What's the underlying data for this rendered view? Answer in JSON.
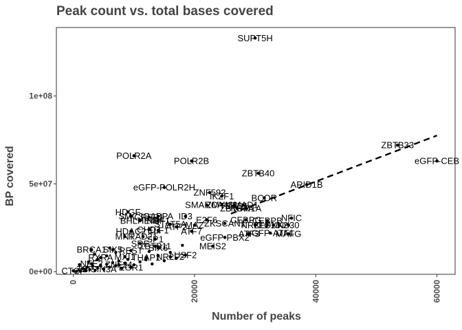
{
  "chart_data": {
    "type": "scatter",
    "title": "Peak count vs. total bases covered",
    "xlabel": "Number of peaks",
    "ylabel": "BP covered",
    "x_ticks": [
      {
        "value": 0,
        "label": "0"
      },
      {
        "value": 20000,
        "label": "20000"
      },
      {
        "value": 40000,
        "label": "40000"
      },
      {
        "value": 60000,
        "label": "60000"
      }
    ],
    "y_ticks": [
      {
        "value": 0,
        "label": "0e+00"
      },
      {
        "value": 50000000,
        "label": "5e+07"
      },
      {
        "value": 100000000,
        "label": "1e+08"
      }
    ],
    "xlim": [
      -2800,
      63000
    ],
    "ylim": [
      -1500000,
      139000000
    ],
    "grid": false,
    "legend": "none",
    "trend_line": {
      "style": "dashed",
      "from": [
        26000,
        33000000
      ],
      "to": [
        60000,
        77500000
      ]
    },
    "point_color": "#000000",
    "labeled_points": [
      {
        "label": "SUPT5H",
        "x": 30000,
        "y": 133000000
      },
      {
        "label": "ZBTB33",
        "x": 53500,
        "y": 72000000
      },
      {
        "label": "eGFP-CEB",
        "x": 60000,
        "y": 63000000
      },
      {
        "label": "POLR2A",
        "x": 10000,
        "y": 66000000
      },
      {
        "label": "POLR2B",
        "x": 19500,
        "y": 63000000
      },
      {
        "label": "ZBTB40",
        "x": 30500,
        "y": 56000000
      },
      {
        "label": "eGFP-POLR2H",
        "x": 15000,
        "y": 48000000
      },
      {
        "label": "ARID1B",
        "x": 38500,
        "y": 49500000
      },
      {
        "label": "ZNF592",
        "x": 22500,
        "y": 45000000
      },
      {
        "label": "IKZF1",
        "x": 24500,
        "y": 43000000
      },
      {
        "label": "BCOR",
        "x": 31500,
        "y": 42000000
      },
      {
        "label": "SMARCA4",
        "x": 22000,
        "y": 38000000
      },
      {
        "label": "ZMYM3",
        "x": 24500,
        "y": 38000000
      },
      {
        "label": "TEAD1",
        "x": 26500,
        "y": 37500000
      },
      {
        "label": "ZBTB7A",
        "x": 27000,
        "y": 36000000
      },
      {
        "label": "KDM1A",
        "x": 28500,
        "y": 36000000
      },
      {
        "label": "SMAD1",
        "x": 28000,
        "y": 38000000
      },
      {
        "label": "NFIC",
        "x": 36000,
        "y": 30500000
      },
      {
        "label": "HDGF",
        "x": 9000,
        "y": 34000000
      },
      {
        "label": "SMC3",
        "x": 9500,
        "y": 31500000
      },
      {
        "label": "CREB1",
        "x": 12500,
        "y": 31000000
      },
      {
        "label": "GABPA",
        "x": 14000,
        "y": 31500000
      },
      {
        "label": "ID3",
        "x": 18500,
        "y": 31500000
      },
      {
        "label": "BHLHE40",
        "x": 11000,
        "y": 29000000
      },
      {
        "label": "NRF1",
        "x": 14000,
        "y": 29000000
      },
      {
        "label": "CEBPB",
        "x": 32000,
        "y": 29000000
      },
      {
        "label": "E2F6",
        "x": 22000,
        "y": 29500000
      },
      {
        "label": "CEBPG",
        "x": 28500,
        "y": 29500000
      },
      {
        "label": "ATF2",
        "x": 17000,
        "y": 25500000
      },
      {
        "label": "MAZ",
        "x": 20000,
        "y": 26500000
      },
      {
        "label": "STAT5A",
        "x": 16000,
        "y": 27000000
      },
      {
        "label": "NR2F1",
        "x": 30000,
        "y": 26500000
      },
      {
        "label": "KLF16",
        "x": 32000,
        "y": 26500000
      },
      {
        "label": "ZKSCAN1",
        "x": 25000,
        "y": 27500000
      },
      {
        "label": "FOXK2",
        "x": 33000,
        "y": 26500000
      },
      {
        "label": "Nrf30",
        "x": 35500,
        "y": 26500000
      },
      {
        "label": "HDAC2",
        "x": 9500,
        "y": 23000000
      },
      {
        "label": "CHD1",
        "x": 12500,
        "y": 24000000
      },
      {
        "label": "ELF1",
        "x": 14000,
        "y": 23500000
      },
      {
        "label": "ATF7",
        "x": 19500,
        "y": 23000000
      },
      {
        "label": "eGFP-ATF1",
        "x": 32500,
        "y": 22000000
      },
      {
        "label": "MAFG",
        "x": 35500,
        "y": 21500000
      },
      {
        "label": "ATF3",
        "x": 29000,
        "y": 21500000
      },
      {
        "label": "MNT",
        "x": 8500,
        "y": 20000000
      },
      {
        "label": "RAD21",
        "x": 11500,
        "y": 20000000
      },
      {
        "label": "SP1",
        "x": 13500,
        "y": 18500000
      },
      {
        "label": "eGFP-PBX2",
        "x": 25000,
        "y": 19500000
      },
      {
        "label": "SRF",
        "x": 11000,
        "y": 16000000
      },
      {
        "label": "ZBTB11",
        "x": 13500,
        "y": 14500000
      },
      {
        "label": "MEIS2",
        "x": 23000,
        "y": 14500000
      },
      {
        "label": "BRCA1",
        "x": 3000,
        "y": 12500000
      },
      {
        "label": "SIX5",
        "x": 6500,
        "y": 12500000
      },
      {
        "label": "REST",
        "x": 9500,
        "y": 12000000
      },
      {
        "label": "SIX6",
        "x": 14000,
        "y": 13500000
      },
      {
        "label": "USF2",
        "x": 18500,
        "y": 9500000
      },
      {
        "label": "NR2F2",
        "x": 16000,
        "y": 8500000
      },
      {
        "label": "RXRA",
        "x": 4500,
        "y": 8000000
      },
      {
        "label": "MXI1",
        "x": 8500,
        "y": 8500000
      },
      {
        "label": "THAP1",
        "x": 12000,
        "y": 8000000
      },
      {
        "label": "NFE2",
        "x": 3000,
        "y": 4500000
      },
      {
        "label": "ZNF24",
        "x": 7500,
        "y": 4000000
      },
      {
        "label": "TBP",
        "x": 2000,
        "y": 1500000
      },
      {
        "label": "SIN3A",
        "x": 5000,
        "y": 1500000
      },
      {
        "label": "EGR1",
        "x": 9500,
        "y": 2500000
      },
      {
        "label": "CTCF",
        "x": 0,
        "y": 500000
      }
    ],
    "unlabeled_cluster": [
      [
        500,
        200000
      ],
      [
        900,
        900000
      ],
      [
        1200,
        300000
      ],
      [
        1500,
        1800000
      ],
      [
        2000,
        600000
      ],
      [
        2300,
        2600000
      ],
      [
        2700,
        1200000
      ],
      [
        3200,
        3200000
      ],
      [
        3600,
        800000
      ],
      [
        4000,
        2100000
      ],
      [
        4500,
        3800000
      ],
      [
        5000,
        1500000
      ],
      [
        5500,
        4200000
      ],
      [
        6000,
        2600000
      ],
      [
        6500,
        5200000
      ],
      [
        7000,
        3400000
      ],
      [
        7500,
        6100000
      ],
      [
        8000,
        2000000
      ],
      [
        8500,
        4800000
      ],
      [
        9000,
        7000000
      ],
      [
        10000,
        3900000
      ],
      [
        11000,
        5600000
      ],
      [
        12000,
        6800000
      ],
      [
        13000,
        4400000
      ],
      [
        14000,
        9200000
      ],
      [
        15000,
        6200000
      ],
      [
        16000,
        11000000
      ],
      [
        17000,
        7600000
      ],
      [
        1000,
        4000000
      ],
      [
        2500,
        5500000
      ],
      [
        4000,
        6800000
      ],
      [
        5500,
        9000000
      ],
      [
        7000,
        11000000
      ],
      [
        3500,
        10000000
      ],
      [
        6000,
        13500000
      ],
      [
        12500,
        11500000
      ],
      [
        18000,
        15000000
      ]
    ]
  }
}
